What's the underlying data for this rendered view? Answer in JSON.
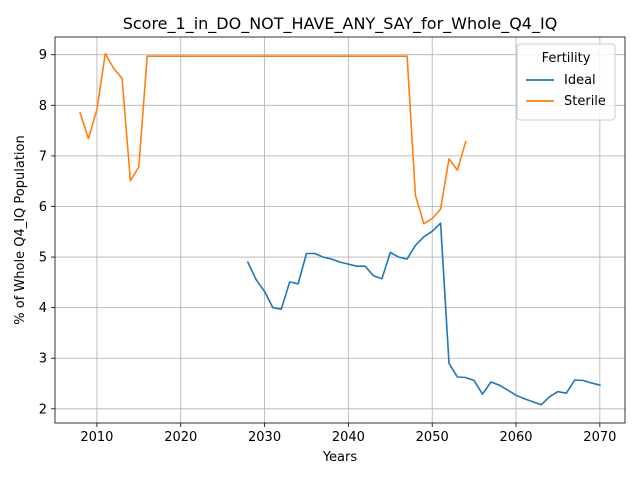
{
  "chart_data": {
    "type": "line",
    "title": "Score_1_in_DO_NOT_HAVE_ANY_SAY_for_Whole_Q4_IQ",
    "xlabel": "Years",
    "ylabel": "% of Whole Q4_IQ Population",
    "xlim": [
      2005,
      2073
    ],
    "ylim": [
      1.72,
      9.35
    ],
    "xticks": [
      2010,
      2020,
      2030,
      2040,
      2050,
      2060,
      2070
    ],
    "yticks": [
      2,
      3,
      4,
      5,
      6,
      7,
      8,
      9
    ],
    "grid": true,
    "legend": {
      "title": "Fertility",
      "placement": "top-right"
    },
    "series": [
      {
        "name": "Ideal",
        "color": "#1f77b4",
        "x": [
          2028,
          2029,
          2030,
          2031,
          2032,
          2033,
          2034,
          2035,
          2036,
          2037,
          2038,
          2039,
          2040,
          2041,
          2042,
          2043,
          2044,
          2045,
          2046,
          2047,
          2048,
          2049,
          2050,
          2051,
          2052,
          2053,
          2054,
          2055,
          2056,
          2057,
          2058,
          2059,
          2060,
          2061,
          2062,
          2063,
          2064,
          2065,
          2066,
          2067,
          2068,
          2069,
          2070
        ],
        "y": [
          4.9,
          4.55,
          4.32,
          4.0,
          3.97,
          4.51,
          4.47,
          5.07,
          5.07,
          5.0,
          4.96,
          4.9,
          4.86,
          4.82,
          4.82,
          4.63,
          4.57,
          5.09,
          5.0,
          4.96,
          5.23,
          5.4,
          5.51,
          5.67,
          2.9,
          2.63,
          2.62,
          2.56,
          2.29,
          2.53,
          2.47,
          2.37,
          2.27,
          2.2,
          2.14,
          2.08,
          2.24,
          2.34,
          2.31,
          2.57,
          2.56,
          2.51,
          2.47
        ]
      },
      {
        "name": "Sterile",
        "color": "#ff7f0e",
        "x": [
          2008,
          2009,
          2010,
          2011,
          2012,
          2013,
          2014,
          2015,
          2016,
          2017,
          2018,
          2019,
          2020,
          2021,
          2022,
          2023,
          2024,
          2025,
          2026,
          2027,
          2028,
          2029,
          2030,
          2031,
          2032,
          2033,
          2034,
          2035,
          2036,
          2037,
          2038,
          2039,
          2040,
          2041,
          2042,
          2043,
          2044,
          2045,
          2046,
          2047,
          2048,
          2049,
          2050,
          2051,
          2052,
          2053,
          2054
        ],
        "y": [
          7.85,
          7.34,
          7.92,
          9.02,
          8.73,
          8.53,
          6.51,
          6.78,
          8.97,
          8.97,
          8.97,
          8.97,
          8.97,
          8.97,
          8.97,
          8.97,
          8.97,
          8.97,
          8.97,
          8.97,
          8.97,
          8.97,
          8.97,
          8.97,
          8.97,
          8.97,
          8.97,
          8.97,
          8.97,
          8.97,
          8.97,
          8.97,
          8.97,
          8.97,
          8.97,
          8.97,
          8.97,
          8.97,
          8.97,
          8.97,
          6.22,
          5.66,
          5.76,
          5.95,
          6.94,
          6.72,
          7.28
        ]
      }
    ]
  }
}
